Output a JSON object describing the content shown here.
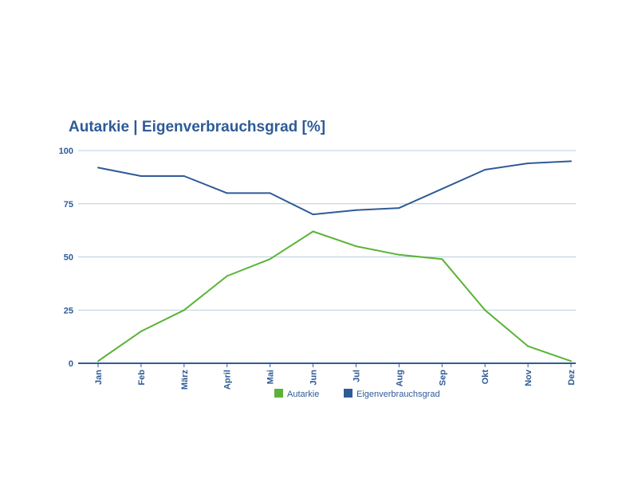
{
  "colors": {
    "primary": "#2e5b97",
    "green": "#5ab337",
    "grid": "#b9cfd9",
    "axis": "#2e5b97"
  },
  "chart_data": {
    "type": "line",
    "title": "Autarkie | Eigenverbrauchsgrad [%]",
    "categories": [
      "Jan",
      "Feb",
      "März",
      "April",
      "Mai",
      "Jun",
      "Jul",
      "Aug",
      "Sep",
      "Okt",
      "Nov",
      "Dez"
    ],
    "ylim": [
      0,
      100
    ],
    "yticks": [
      0,
      25,
      50,
      75,
      100
    ],
    "grid": true,
    "legend_position": "bottom-center",
    "series": [
      {
        "name": "Autarkie",
        "color": "#5ab337",
        "values": [
          1,
          15,
          25,
          41,
          49,
          62,
          55,
          51,
          49,
          25,
          8,
          1
        ]
      },
      {
        "name": "Eigenverbrauchsgrad",
        "color": "#2e5b97",
        "values": [
          92,
          88,
          88,
          80,
          80,
          70,
          72,
          73,
          82,
          91,
          94,
          95
        ]
      }
    ]
  }
}
